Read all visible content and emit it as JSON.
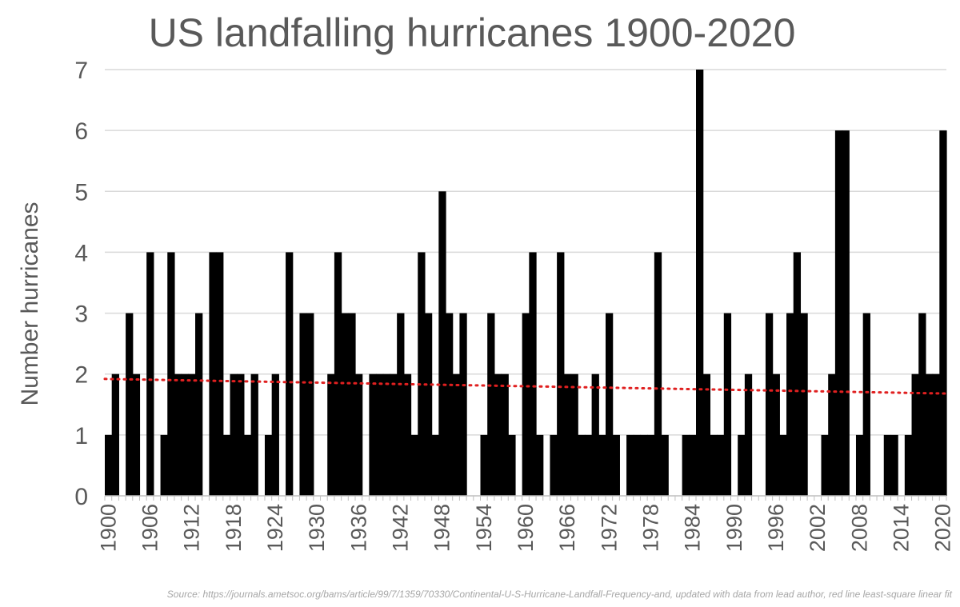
{
  "chart_data": {
    "type": "bar",
    "title": "US landfalling hurricanes 1900-2020",
    "xlabel": "",
    "ylabel": "Number hurricanes",
    "ylim": [
      0,
      7
    ],
    "yticks": [
      0,
      1,
      2,
      3,
      4,
      5,
      6,
      7
    ],
    "grid": true,
    "x_tick_labels": [
      "1900",
      "1906",
      "1912",
      "1918",
      "1924",
      "1930",
      "1936",
      "1942",
      "1948",
      "1954",
      "1960",
      "1966",
      "1972",
      "1978",
      "1984",
      "1990",
      "1996",
      "2002",
      "2008",
      "2014",
      "2020"
    ],
    "categories": [
      1900,
      1901,
      1902,
      1903,
      1904,
      1905,
      1906,
      1907,
      1908,
      1909,
      1910,
      1911,
      1912,
      1913,
      1914,
      1915,
      1916,
      1917,
      1918,
      1919,
      1920,
      1921,
      1922,
      1923,
      1924,
      1925,
      1926,
      1927,
      1928,
      1929,
      1930,
      1931,
      1932,
      1933,
      1934,
      1935,
      1936,
      1937,
      1938,
      1939,
      1940,
      1941,
      1942,
      1943,
      1944,
      1945,
      1946,
      1947,
      1948,
      1949,
      1950,
      1951,
      1952,
      1953,
      1954,
      1955,
      1956,
      1957,
      1958,
      1959,
      1960,
      1961,
      1962,
      1963,
      1964,
      1965,
      1966,
      1967,
      1968,
      1969,
      1970,
      1971,
      1972,
      1973,
      1974,
      1975,
      1976,
      1977,
      1978,
      1979,
      1980,
      1981,
      1982,
      1983,
      1984,
      1985,
      1986,
      1987,
      1988,
      1989,
      1990,
      1991,
      1992,
      1993,
      1994,
      1995,
      1996,
      1997,
      1998,
      1999,
      2000,
      2001,
      2002,
      2003,
      2004,
      2005,
      2006,
      2007,
      2008,
      2009,
      2010,
      2011,
      2012,
      2013,
      2014,
      2015,
      2016,
      2017,
      2018,
      2019,
      2020
    ],
    "values": [
      1,
      2,
      0,
      3,
      2,
      0,
      4,
      0,
      1,
      4,
      2,
      2,
      2,
      3,
      0,
      4,
      4,
      1,
      2,
      2,
      1,
      2,
      0,
      1,
      2,
      0,
      4,
      0,
      3,
      3,
      0,
      0,
      2,
      4,
      3,
      3,
      2,
      0,
      2,
      2,
      2,
      2,
      3,
      2,
      1,
      4,
      3,
      1,
      5,
      3,
      2,
      3,
      0,
      0,
      1,
      3,
      2,
      2,
      1,
      0,
      3,
      4,
      1,
      0,
      1,
      4,
      2,
      2,
      1,
      1,
      2,
      1,
      3,
      1,
      0,
      1,
      1,
      1,
      1,
      4,
      1,
      0,
      0,
      1,
      1,
      7,
      2,
      1,
      1,
      3,
      0,
      1,
      2,
      0,
      0,
      3,
      2,
      1,
      3,
      4,
      3,
      0,
      0,
      1,
      2,
      6,
      6,
      0,
      1,
      3,
      0,
      0,
      1,
      1,
      0,
      1,
      2,
      3,
      2,
      2,
      6
    ],
    "trendline": {
      "type": "least-squares linear",
      "start": 1.92,
      "end": 1.68,
      "color": "#e02020"
    },
    "bar_color": "#000000"
  },
  "source_note": "Source: https://journals.ametsoc.org/bams/article/99/7/1359/70330/Continental-U-S-Hurricane-Landfall-Frequency-and, updated with data from lead author, red line least-square linear fit"
}
